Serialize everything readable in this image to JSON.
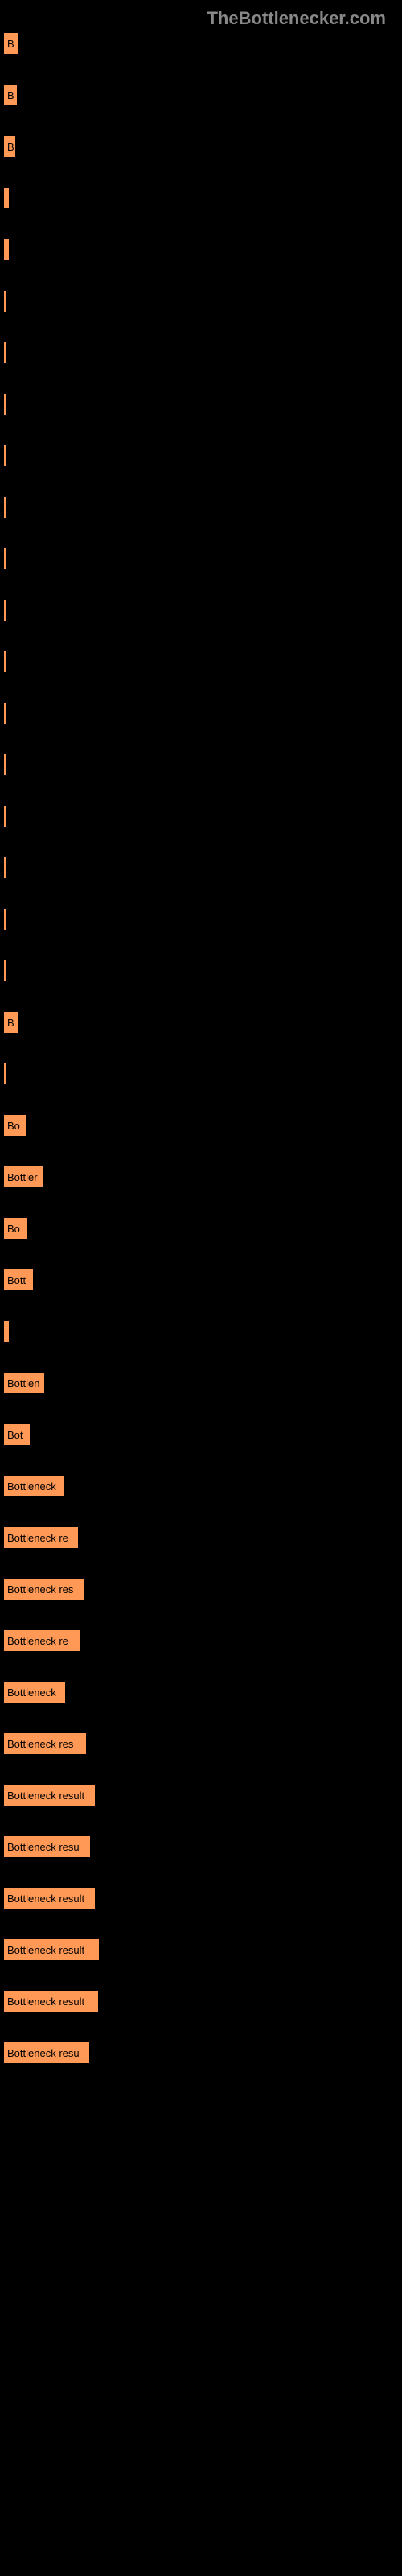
{
  "logo": "TheBottlenecker.com",
  "chart": {
    "type": "bar",
    "background_color": "#000000",
    "bar_color": "#ff9955",
    "bar_label": "Bottleneck result",
    "bars": [
      {
        "width": 18,
        "label": "B"
      },
      {
        "width": 16,
        "label": "B"
      },
      {
        "width": 14,
        "label": "B"
      },
      {
        "width": 6,
        "label": ""
      },
      {
        "width": 6,
        "label": ""
      },
      {
        "width": 3,
        "label": ""
      },
      {
        "width": 3,
        "label": ""
      },
      {
        "width": 3,
        "label": ""
      },
      {
        "width": 3,
        "label": ""
      },
      {
        "width": 3,
        "label": ""
      },
      {
        "width": 3,
        "label": ""
      },
      {
        "width": 3,
        "label": ""
      },
      {
        "width": 3,
        "label": ""
      },
      {
        "width": 3,
        "label": ""
      },
      {
        "width": 3,
        "label": ""
      },
      {
        "width": 3,
        "label": ""
      },
      {
        "width": 3,
        "label": ""
      },
      {
        "width": 3,
        "label": ""
      },
      {
        "width": 3,
        "label": ""
      },
      {
        "width": 17,
        "label": "B"
      },
      {
        "width": 3,
        "label": ""
      },
      {
        "width": 27,
        "label": "Bo"
      },
      {
        "width": 48,
        "label": "Bottler"
      },
      {
        "width": 29,
        "label": "Bo"
      },
      {
        "width": 36,
        "label": "Bott"
      },
      {
        "width": 6,
        "label": ""
      },
      {
        "width": 50,
        "label": "Bottlen"
      },
      {
        "width": 32,
        "label": "Bot"
      },
      {
        "width": 75,
        "label": "Bottleneck"
      },
      {
        "width": 92,
        "label": "Bottleneck re"
      },
      {
        "width": 100,
        "label": "Bottleneck res"
      },
      {
        "width": 94,
        "label": "Bottleneck re"
      },
      {
        "width": 76,
        "label": "Bottleneck"
      },
      {
        "width": 102,
        "label": "Bottleneck res"
      },
      {
        "width": 113,
        "label": "Bottleneck result"
      },
      {
        "width": 107,
        "label": "Bottleneck resu"
      },
      {
        "width": 113,
        "label": "Bottleneck result"
      },
      {
        "width": 118,
        "label": "Bottleneck result"
      },
      {
        "width": 117,
        "label": "Bottleneck result"
      },
      {
        "width": 106,
        "label": "Bottleneck resu"
      }
    ]
  }
}
